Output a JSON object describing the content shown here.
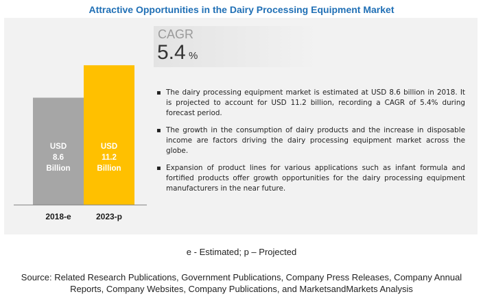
{
  "title": "Attractive Opportunities in the Dairy Processing Equipment Market",
  "cagr": {
    "label": "CAGR",
    "value": "5.4",
    "unit": "%"
  },
  "bullets": [
    "The dairy processing equipment market is estimated at USD 8.6 billion in 2018. It is projected to account for USD 11.2 billion, recording a CAGR of 5.4% during forecast period.",
    "The growth in the consumption of dairy products and the increase in disposable income are factors driving the dairy processing equipment market across the globe.",
    "Expansion of product lines for various applications such as infant formula and fortified products offer growth opportunities for the dairy processing equipment manufacturers in the near future."
  ],
  "bullet_symbol": "▪",
  "footnote": "e - Estimated; p – Projected",
  "source": {
    "line1": "Source: Related Research Publications, Government Publications, Company Press Releases, Company Annual",
    "line2": "Reports, Company Websites, Company Publications, and MarketsandMarkets Analysis"
  },
  "chart_data": {
    "type": "bar",
    "categories": [
      "2018-e",
      "2023-p"
    ],
    "values": [
      8.6,
      11.2
    ],
    "bar_labels": [
      [
        "USD",
        "8.6",
        "Billion"
      ],
      [
        "USD",
        "11.2",
        "Billion"
      ]
    ],
    "colors": [
      "#a6a6a6",
      "#ffc000"
    ],
    "ylim": [
      0,
      12.2
    ]
  }
}
